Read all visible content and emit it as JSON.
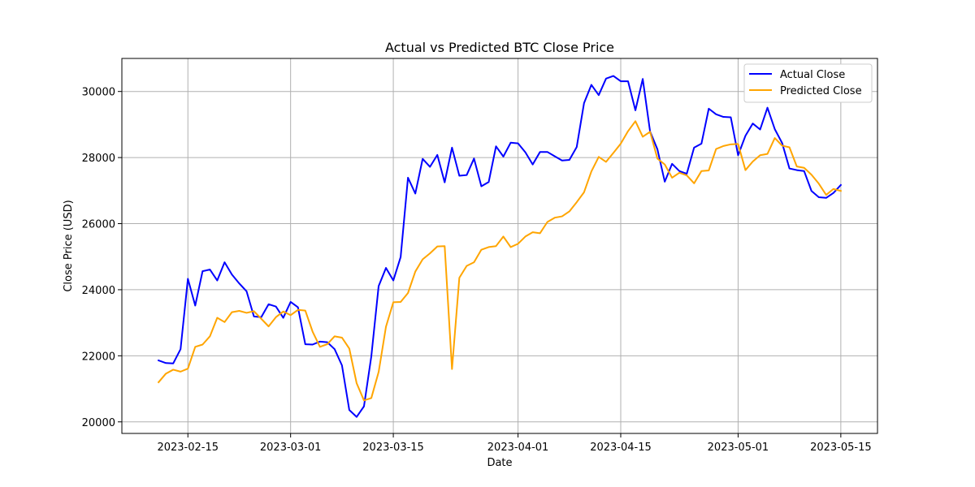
{
  "chart_data": {
    "type": "line",
    "title": "Actual vs Predicted BTC Close Price",
    "xlabel": "Date",
    "ylabel": "Close Price (USD)",
    "xlim": [
      "2023-02-06",
      "2023-05-20"
    ],
    "ylim": [
      19650,
      31000
    ],
    "grid": true,
    "legend_position": "top-right",
    "x_ticks": [
      "2023-02-15",
      "2023-03-01",
      "2023-03-15",
      "2023-04-01",
      "2023-04-15",
      "2023-05-01",
      "2023-05-15"
    ],
    "y_ticks": [
      20000,
      22000,
      24000,
      26000,
      28000,
      30000
    ],
    "x_start": "2023-02-11",
    "x_step_days": 1,
    "series": [
      {
        "name": "Actual Close",
        "color": "#0000ff",
        "values": [
          21860,
          21780,
          21770,
          22200,
          24330,
          23520,
          24560,
          24610,
          24280,
          24830,
          24460,
          24190,
          23950,
          23190,
          23170,
          23560,
          23490,
          23150,
          23630,
          23470,
          22350,
          22340,
          22430,
          22410,
          22200,
          21710,
          20360,
          20150,
          20470,
          21980,
          24110,
          24660,
          24280,
          24990,
          27390,
          26910,
          27960,
          27720,
          28080,
          27250,
          28300,
          27450,
          27470,
          27970,
          27130,
          27260,
          28340,
          28030,
          28450,
          28430,
          28160,
          27790,
          28170,
          28170,
          28040,
          27910,
          27930,
          28320,
          29650,
          30200,
          29890,
          30390,
          30470,
          30310,
          30310,
          29430,
          30380,
          28790,
          28250,
          27270,
          27810,
          27590,
          27510,
          28300,
          28420,
          29480,
          29310,
          29230,
          29220,
          28070,
          28660,
          29030,
          28850,
          29510,
          28860,
          28440,
          27670,
          27620,
          27590,
          26990,
          26800,
          26780,
          26930,
          27170
        ]
      },
      {
        "name": "Predicted Close",
        "color": "#ffa500",
        "values": [
          21200,
          21460,
          21580,
          21520,
          21610,
          22270,
          22340,
          22590,
          23150,
          23020,
          23320,
          23360,
          23300,
          23350,
          23120,
          22890,
          23170,
          23340,
          23230,
          23390,
          23370,
          22730,
          22270,
          22350,
          22590,
          22550,
          22220,
          21170,
          20650,
          20720,
          21510,
          22880,
          23620,
          23630,
          23900,
          24550,
          24920,
          25100,
          25310,
          25320,
          21600,
          24360,
          24720,
          24830,
          25210,
          25290,
          25320,
          25610,
          25290,
          25390,
          25610,
          25740,
          25710,
          26050,
          26180,
          26220,
          26370,
          26650,
          26950,
          27580,
          28020,
          27870,
          28140,
          28420,
          28800,
          29100,
          28630,
          28780,
          27970,
          27790,
          27390,
          27540,
          27460,
          27220,
          27590,
          27610,
          28260,
          28350,
          28400,
          28410,
          27620,
          27880,
          28070,
          28110,
          28590,
          28360,
          28310,
          27730,
          27690,
          27480,
          27210,
          26870,
          27050,
          26990
        ]
      }
    ]
  }
}
